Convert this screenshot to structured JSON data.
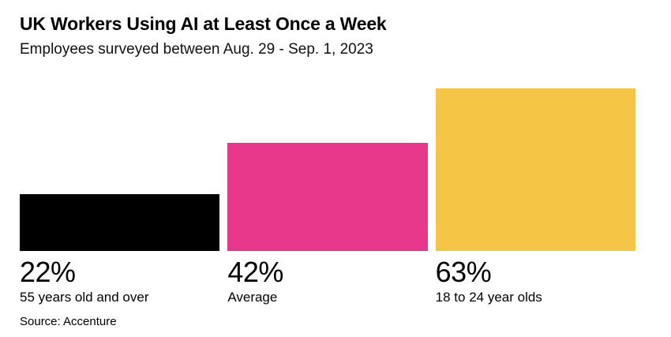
{
  "header": {
    "title": "UK Workers Using AI at Least Once a Week",
    "subtitle": "Employees surveyed between Aug. 29 - Sep. 1, 2023"
  },
  "source_label": "Source: Accenture",
  "chart_data": {
    "type": "bar",
    "title": "UK Workers Using AI at Least Once a Week",
    "subtitle": "Employees surveyed between Aug. 29 - Sep. 1, 2023",
    "source": "Source: Accenture",
    "orientation": "vertical",
    "grid": false,
    "legend": false,
    "axes_visible": false,
    "categories": [
      "55 years old and over",
      "Average",
      "18 to 24 year olds"
    ],
    "values": [
      22,
      42,
      63
    ],
    "value_labels": [
      "22%",
      "42%",
      "63%"
    ],
    "bar_colors": [
      "#000000",
      "#E8388C",
      "#F5C545"
    ],
    "ylim": [
      0,
      63
    ],
    "unit": "%"
  }
}
